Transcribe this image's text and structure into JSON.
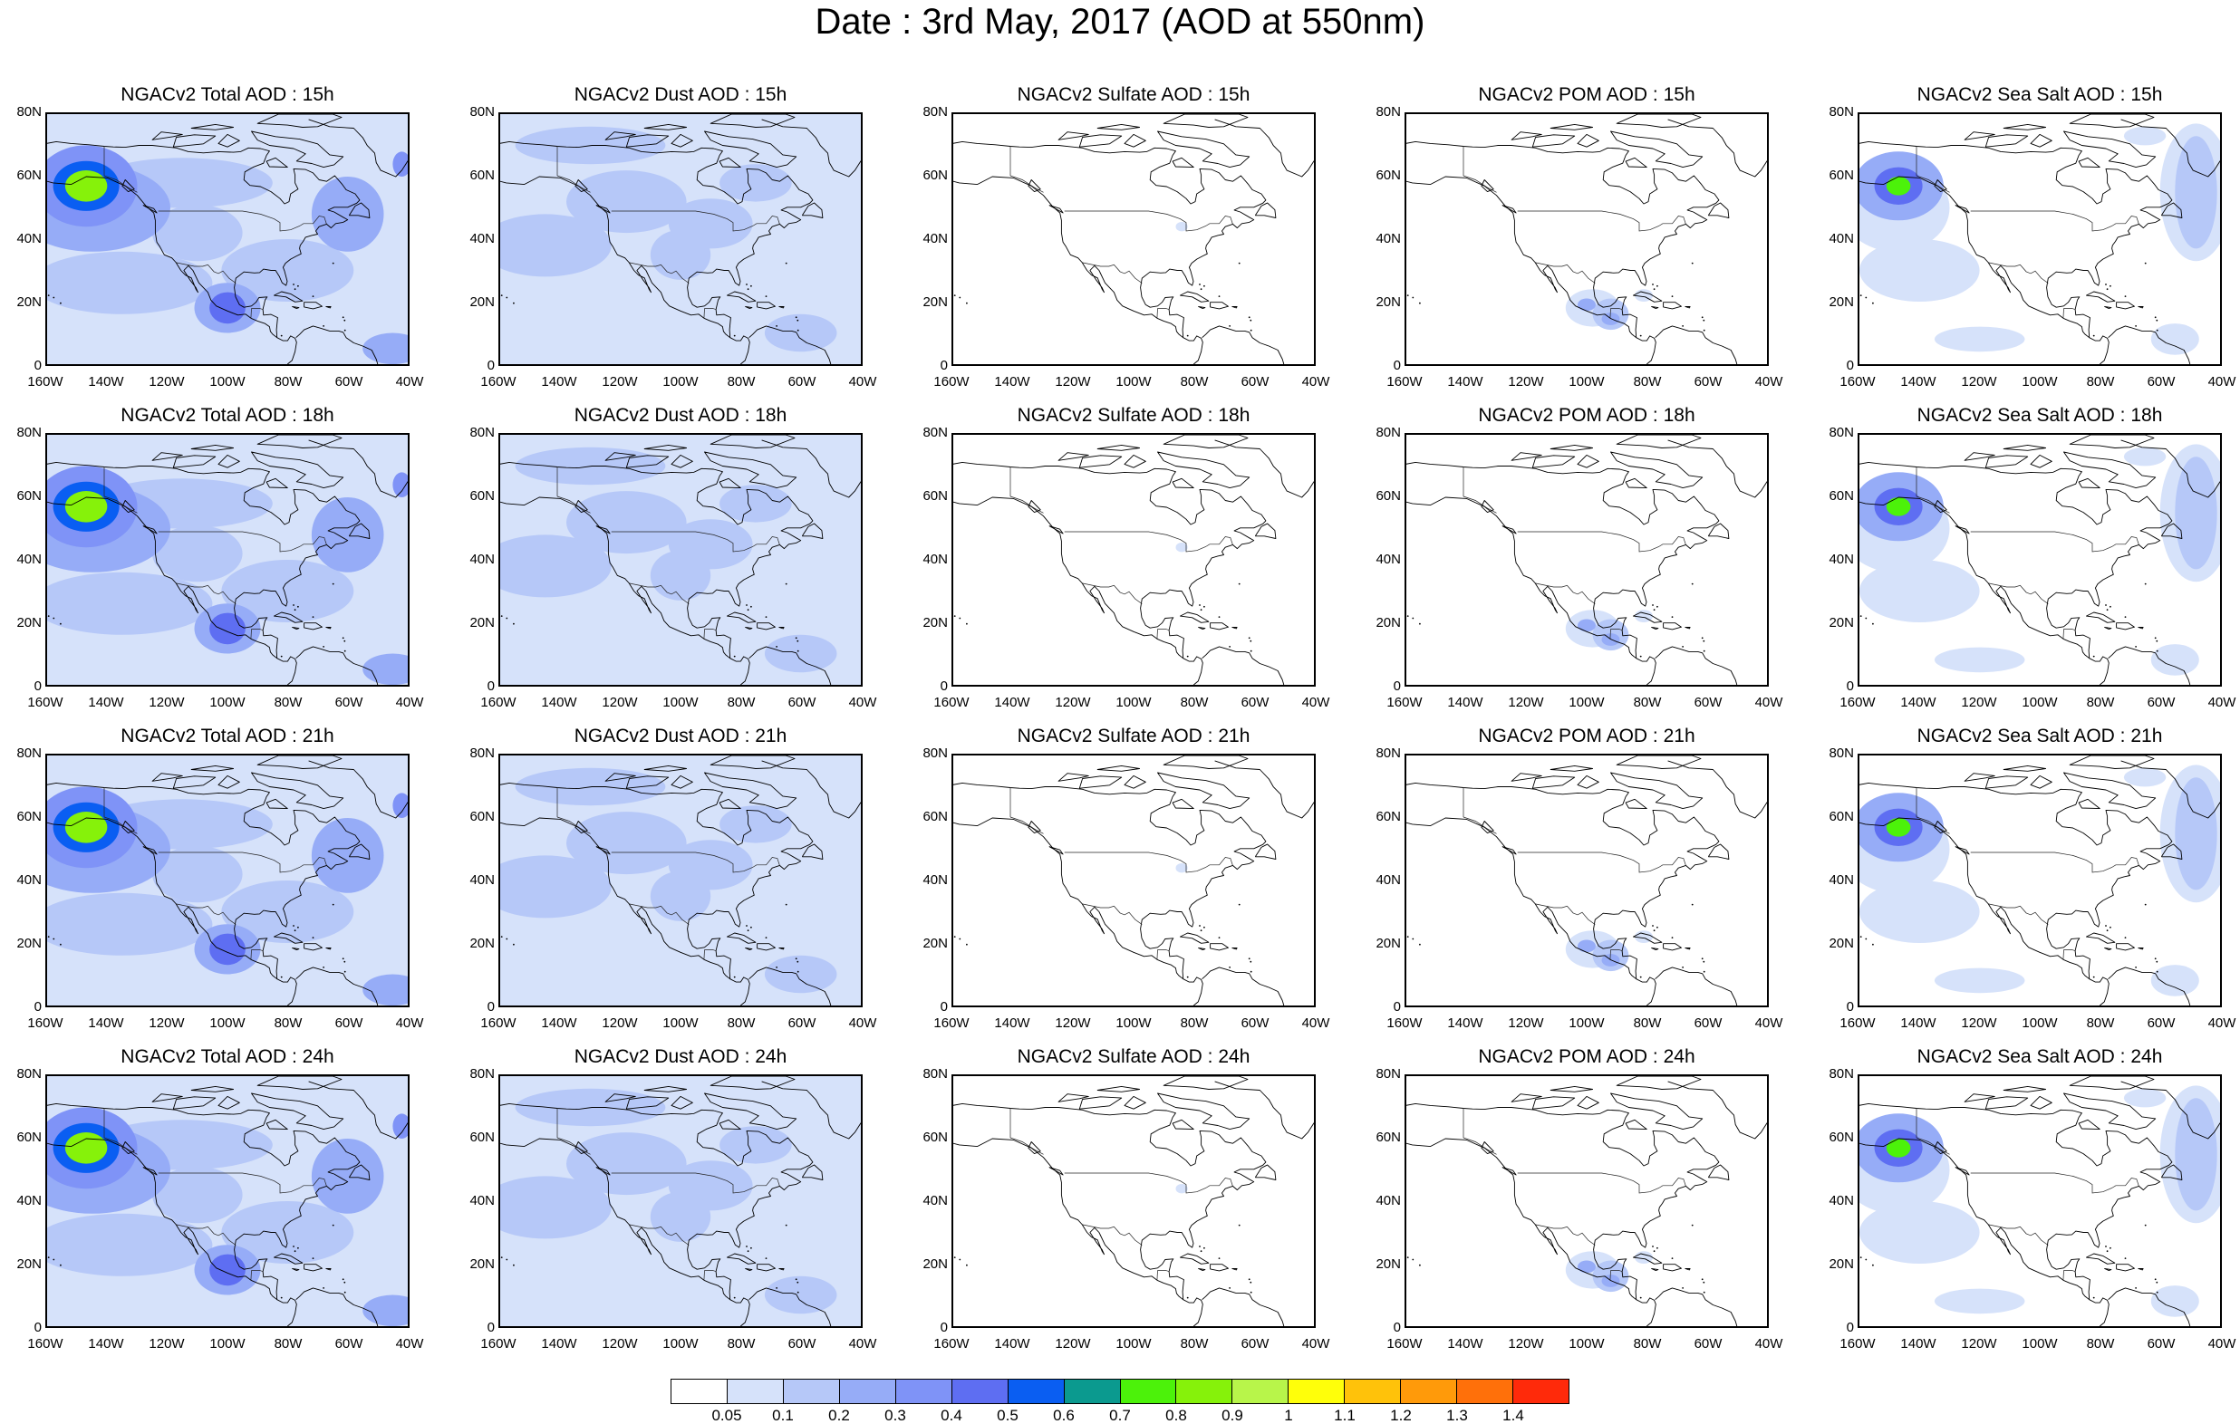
{
  "title": "Date : 3rd May, 2017 (AOD at 550nm)",
  "lat_labels": [
    "80N",
    "60N",
    "40N",
    "20N",
    "0"
  ],
  "lon_labels": [
    "160W",
    "140W",
    "120W",
    "100W",
    "80W",
    "60W",
    "40W"
  ],
  "panels": [
    [
      {
        "title": "NGACv2 Total AOD : 15h",
        "field": "total"
      },
      {
        "title": "NGACv2 Dust AOD : 15h",
        "field": "dust"
      },
      {
        "title": "NGACv2 Sulfate AOD : 15h",
        "field": "sulfate"
      },
      {
        "title": "NGACv2 POM AOD : 15h",
        "field": "pom"
      },
      {
        "title": "NGACv2 Sea Salt AOD : 15h",
        "field": "seasalt"
      }
    ],
    [
      {
        "title": "NGACv2 Total AOD : 18h",
        "field": "total"
      },
      {
        "title": "NGACv2 Dust AOD : 18h",
        "field": "dust"
      },
      {
        "title": "NGACv2 Sulfate AOD : 18h",
        "field": "sulfate"
      },
      {
        "title": "NGACv2 POM AOD : 18h",
        "field": "pom"
      },
      {
        "title": "NGACv2 Sea Salt AOD : 18h",
        "field": "seasalt"
      }
    ],
    [
      {
        "title": "NGACv2 Total AOD : 21h",
        "field": "total"
      },
      {
        "title": "NGACv2 Dust AOD : 21h",
        "field": "dust"
      },
      {
        "title": "NGACv2 Sulfate AOD : 21h",
        "field": "sulfate"
      },
      {
        "title": "NGACv2 POM AOD : 21h",
        "field": "pom"
      },
      {
        "title": "NGACv2 Sea Salt AOD : 21h",
        "field": "seasalt"
      }
    ],
    [
      {
        "title": "NGACv2 Total AOD : 24h",
        "field": "total"
      },
      {
        "title": "NGACv2 Dust AOD : 24h",
        "field": "dust"
      },
      {
        "title": "NGACv2 Sulfate AOD : 24h",
        "field": "sulfate"
      },
      {
        "title": "NGACv2 POM AOD : 24h",
        "field": "pom"
      },
      {
        "title": "NGACv2 Sea Salt  AOD : 24h",
        "field": "seasalt"
      }
    ]
  ],
  "colorbar": {
    "colors": [
      "#ffffff",
      "#d6e2fa",
      "#b6c8f8",
      "#96acf7",
      "#7f93f7",
      "#5e6ef2",
      "#0a5ef2",
      "#0b9a8f",
      "#4cf20a",
      "#86f20a",
      "#b8f54a",
      "#ffff0a",
      "#ffc20a",
      "#ff9a0a",
      "#ff700a",
      "#ff2a0a"
    ],
    "labels": [
      "0.05",
      "0.1",
      "0.2",
      "0.3",
      "0.4",
      "0.5",
      "0.6",
      "0.7",
      "0.8",
      "0.9",
      "1",
      "1.1",
      "1.2",
      "1.3",
      "1.4"
    ]
  }
}
